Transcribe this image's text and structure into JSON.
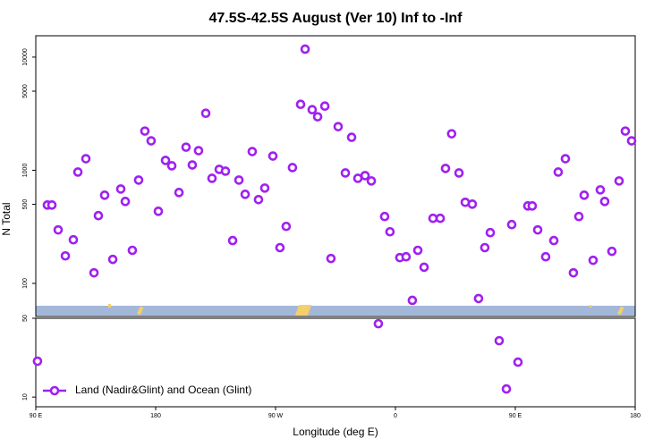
{
  "chart_data": [
    {
      "type": "scatter",
      "title": "47.5S-42.5S August (Ver 10)   Inf to -Inf",
      "ylabel": "N Total",
      "log_y": true,
      "xlim": [
        90,
        540
      ],
      "ylim": [
        51,
        15450
      ],
      "yticks": [
        100,
        500,
        1000,
        5000,
        10000
      ],
      "series": [
        {
          "color": "#a020f0",
          "x": [
            98.7,
            102.1,
            106.8,
            112.2,
            118.2,
            121.6,
            127.6,
            133.7,
            137.0,
            141.7,
            147.8,
            153.8,
            157.2,
            162.5,
            167.2,
            171.9,
            176.6,
            182.0,
            187.4,
            192.1,
            197.5,
            202.8,
            207.5,
            212.2,
            217.6,
            222.3,
            227.7,
            232.4,
            237.8,
            242.5,
            247.2,
            252.5,
            257.2,
            261.9,
            268.0,
            273.3,
            278.0,
            282.7,
            288.8,
            292.2,
            297.5,
            301.6,
            307.0,
            311.6,
            317.0,
            322.4,
            327.1,
            331.8,
            337.2,
            341.9,
            351.9,
            355.9,
            363.3,
            368.0,
            372.7,
            376.8,
            381.5,
            388.2,
            393.6,
            397.6,
            402.2,
            407.7,
            412.4,
            417.7,
            422.4,
            427.1,
            431.2,
            447.3,
            459.4,
            462.7,
            466.8,
            472.8,
            478.9,
            482.2,
            487.6,
            493.6,
            497.7,
            501.7,
            508.4,
            513.8,
            517.1,
            522.5,
            527.9,
            532.6,
            537.3
          ],
          "values": [
            493,
            493,
            297,
            175,
            243,
            964,
            1265,
            124,
            397,
            602,
            163,
            683,
            530,
            196,
            819,
            2220,
            1820,
            434,
            1222,
            1095,
            636,
            1600,
            1114,
            1490,
            3190,
            849,
            1018,
            982,
            239,
            819,
            613,
            1463,
            550,
            696,
            1336,
            207,
            319,
            1056,
            3825,
            11770,
            3430,
            2970,
            3690,
            166,
            2430,
            947,
            1955,
            849,
            897,
            805,
            390,
            286,
            169,
            172,
            70.8,
            196,
            139,
            376,
            376,
            1038,
            2100,
            947,
            521,
            502,
            73.5,
            207,
            281,
            331,
            484,
            484,
            297,
            172,
            239,
            964,
            1265,
            124,
            390,
            602,
            160,
            671,
            530,
            192,
            805,
            2220,
            1820
          ]
        }
      ]
    },
    {
      "type": "scatter",
      "xlabel": "Longitude (deg E)",
      "log_y": true,
      "legend": "bottom-left",
      "xlim": [
        90,
        540
      ],
      "xticks": [
        {
          "value": 90,
          "label": "90 E"
        },
        180,
        {
          "value": 270,
          "label": "90 W"
        },
        {
          "value": 360,
          "label": "0"
        },
        {
          "value": 450,
          "label": "90 E"
        },
        {
          "value": 540,
          "label": "180"
        }
      ],
      "ylim": [
        8.2,
        50
      ],
      "yticks": [
        10,
        50
      ],
      "series": [
        {
          "name": "Land (Nadir&Glint) and Ocean (Glint)",
          "color": "#a020f0",
          "x": [
            91.3,
            347.2,
            437.9,
            443.3,
            452.0
          ],
          "values": [
            20.8,
            44.7,
            31.6,
            11.8,
            20.4
          ]
        }
      ]
    }
  ]
}
